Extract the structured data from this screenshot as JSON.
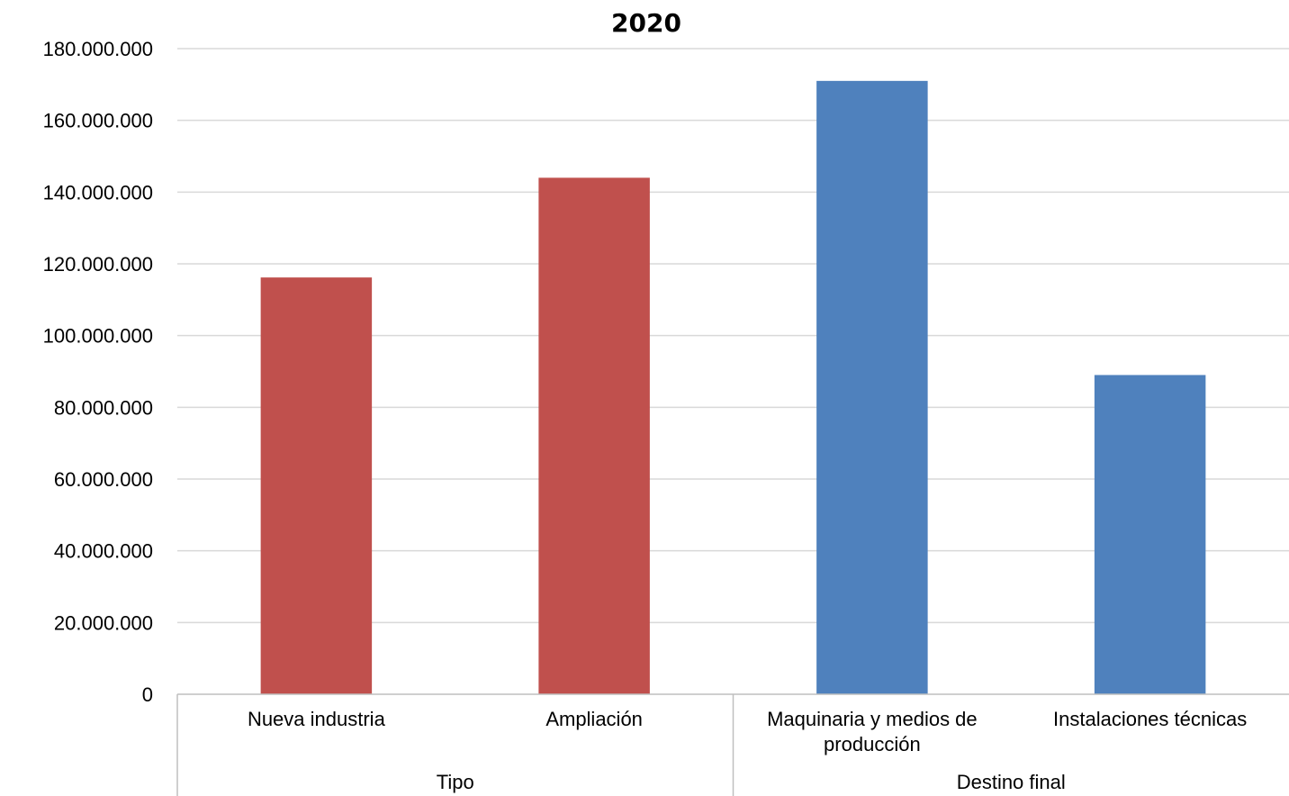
{
  "chart_data": {
    "type": "bar",
    "title": "2020",
    "xlabel": "",
    "ylabel": "",
    "ylim": [
      0,
      180000000
    ],
    "yticks": [
      0,
      20000000,
      40000000,
      60000000,
      80000000,
      100000000,
      120000000,
      140000000,
      160000000,
      180000000
    ],
    "ytick_labels": [
      "0",
      "20.000.000",
      "40.000.000",
      "60.000.000",
      "80.000.000",
      "100.000.000",
      "120.000.000",
      "140.000.000",
      "160.000.000",
      "180.000.000"
    ],
    "grid": true,
    "legend": "none",
    "groups": [
      {
        "name": "Tipo",
        "color": "#C0504D",
        "categories": [
          {
            "label": [
              "Nueva industria"
            ],
            "value": 116200000
          },
          {
            "label": [
              "Ampliación"
            ],
            "value": 144000000
          }
        ]
      },
      {
        "name": "Destino final",
        "color": "#4F81BD",
        "categories": [
          {
            "label": [
              "Maquinaria y medios de",
              "producción"
            ],
            "value": 171000000
          },
          {
            "label": [
              "Instalaciones técnicas"
            ],
            "value": 89000000
          }
        ]
      }
    ]
  }
}
